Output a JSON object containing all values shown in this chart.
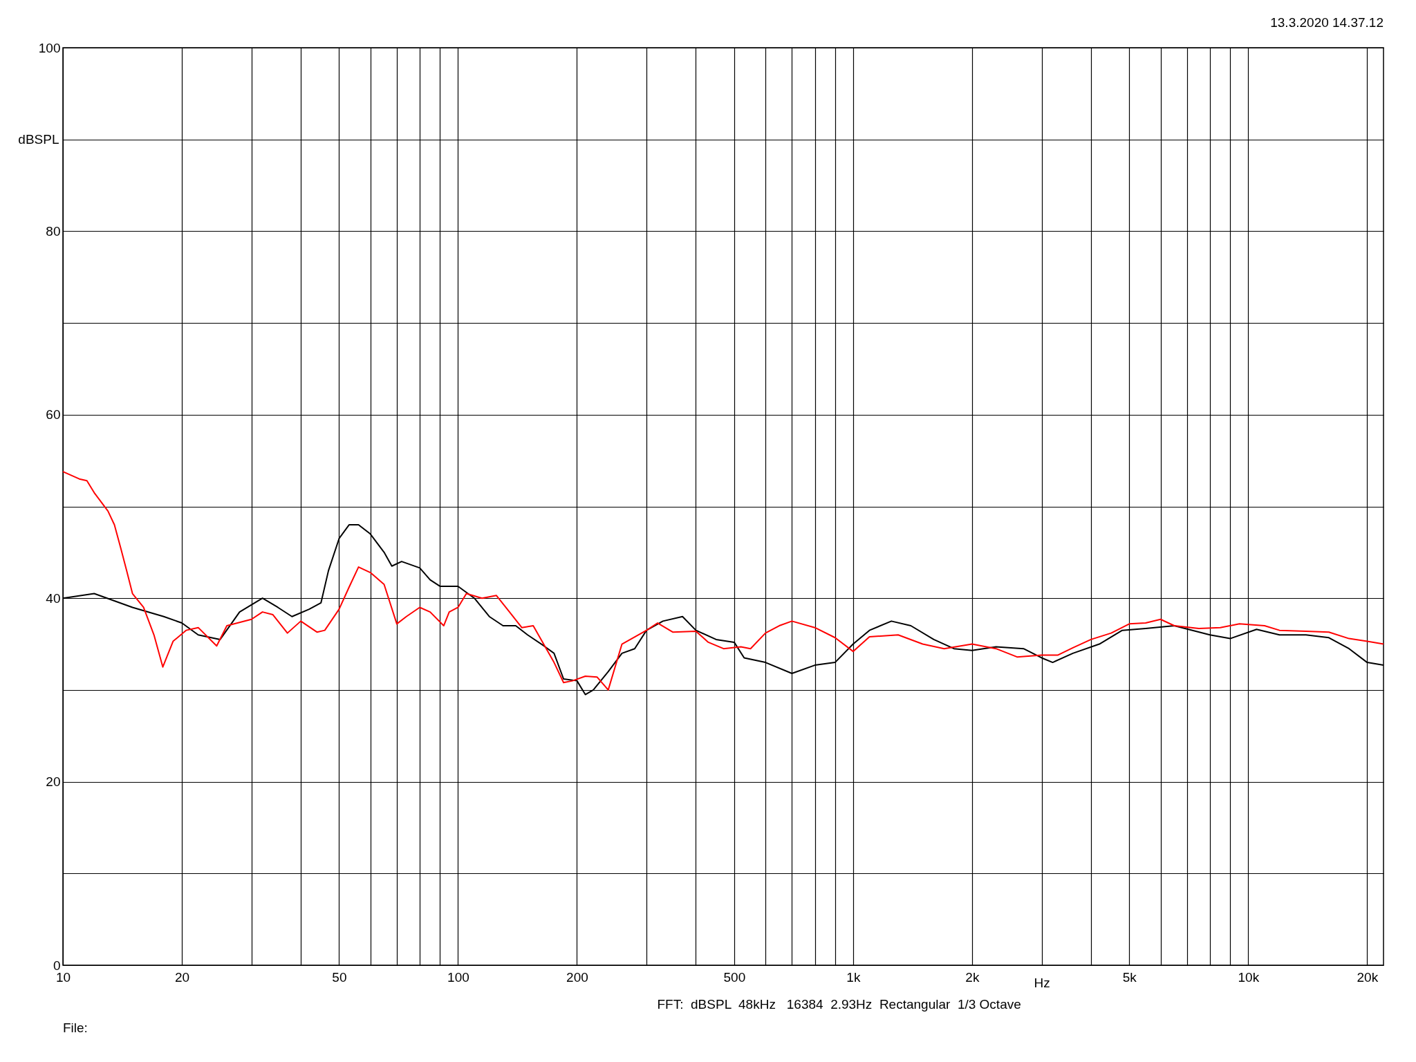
{
  "chart_data": {
    "type": "line",
    "xlabel": "Hz",
    "ylabel": "dBSPL",
    "log": "x",
    "grid": true,
    "legend": false,
    "marker": "none",
    "line_style": "solid",
    "annotations": [
      "13.3.2020 14.37.12",
      "FFT:  dBSPL  48kHz   16384  2.93Hz  Rectangular  1/3 Octave",
      "File:"
    ],
    "xlim": [
      10,
      22000
    ],
    "xticks": [
      {
        "value": 10,
        "label": "10"
      },
      {
        "value": 20,
        "label": "20"
      },
      {
        "value": 30,
        "label": null
      },
      {
        "value": 40,
        "label": null
      },
      {
        "value": 50,
        "label": "50"
      },
      {
        "value": 60,
        "label": null
      },
      {
        "value": 70,
        "label": null
      },
      {
        "value": 80,
        "label": null
      },
      {
        "value": 90,
        "label": null
      },
      {
        "value": 100,
        "label": "100"
      },
      {
        "value": 200,
        "label": "200"
      },
      {
        "value": 300,
        "label": null
      },
      {
        "value": 400,
        "label": null
      },
      {
        "value": 500,
        "label": "500"
      },
      {
        "value": 600,
        "label": null
      },
      {
        "value": 700,
        "label": null
      },
      {
        "value": 800,
        "label": null
      },
      {
        "value": 900,
        "label": null
      },
      {
        "value": 1000,
        "label": "1k"
      },
      {
        "value": 2000,
        "label": "2k"
      },
      {
        "value": 3000,
        "label": null
      },
      {
        "value": 4000,
        "label": null
      },
      {
        "value": 5000,
        "label": "5k"
      },
      {
        "value": 6000,
        "label": null
      },
      {
        "value": 7000,
        "label": null
      },
      {
        "value": 8000,
        "label": null
      },
      {
        "value": 9000,
        "label": null
      },
      {
        "value": 10000,
        "label": "10k"
      },
      {
        "value": 20000,
        "label": "20k"
      }
    ],
    "ylim": [
      0,
      100
    ],
    "yticks": [
      0,
      {
        "value": 10,
        "label": null
      },
      20,
      {
        "value": 30,
        "label": null
      },
      40,
      {
        "value": 50,
        "label": null
      },
      60,
      {
        "value": 70,
        "label": null
      },
      80,
      {
        "value": 90,
        "label": null
      },
      100
    ],
    "series": [
      {
        "color": "#000000",
        "x": [
          10,
          12,
          15,
          18,
          20,
          22,
          25,
          28,
          32,
          35,
          38,
          42,
          45,
          47,
          50,
          53,
          56,
          60,
          65,
          68,
          72,
          80,
          85,
          90,
          100,
          110,
          120,
          130,
          140,
          150,
          165,
          175,
          185,
          200,
          210,
          220,
          240,
          260,
          280,
          300,
          330,
          370,
          400,
          450,
          500,
          530,
          600,
          700,
          800,
          900,
          1000,
          1100,
          1250,
          1400,
          1600,
          1800,
          2000,
          2300,
          2700,
          3000,
          3200,
          3600,
          4200,
          4800,
          5500,
          6500,
          8000,
          9000,
          10500,
          12000,
          14000,
          16000,
          18000,
          20000,
          22000
        ],
        "values": [
          40,
          40.5,
          39,
          38,
          37.3,
          36,
          35.5,
          38.5,
          40,
          39,
          38,
          38.8,
          39.5,
          43,
          46.5,
          48,
          48,
          47,
          45,
          43.5,
          44,
          43.3,
          42,
          41.3,
          41.3,
          40,
          38,
          37,
          37,
          36,
          34.8,
          34,
          31.2,
          31,
          29.5,
          30,
          32,
          34,
          34.5,
          36.5,
          37.5,
          38,
          36.5,
          35.5,
          35.2,
          33.5,
          33,
          31.8,
          32.7,
          33,
          35,
          36.5,
          37.5,
          37,
          35.5,
          34.5,
          34.3,
          34.7,
          34.5,
          33.5,
          33,
          34,
          35,
          36.5,
          36.7,
          37,
          36,
          35.6,
          36.6,
          36,
          36,
          35.7,
          34.5,
          33,
          32.7
        ]
      },
      {
        "color": "#ff0000",
        "x": [
          10,
          11,
          11.5,
          12,
          13,
          13.5,
          14,
          14.5,
          15,
          16,
          17,
          17.9,
          19,
          20.5,
          22,
          24.5,
          26,
          30,
          32,
          34,
          37,
          40,
          44,
          46,
          50,
          53,
          56,
          60,
          65,
          70,
          74,
          80,
          85,
          92,
          95,
          100,
          105,
          115,
          125,
          135,
          145,
          155,
          175,
          185,
          195,
          210,
          225,
          240,
          260,
          300,
          320,
          350,
          400,
          430,
          470,
          520,
          550,
          600,
          650,
          700,
          800,
          900,
          1000,
          1100,
          1300,
          1500,
          1700,
          2000,
          2300,
          2600,
          3000,
          3300,
          3600,
          4000,
          4500,
          5000,
          5500,
          6000,
          6500,
          7500,
          8500,
          9500,
          11000,
          12000,
          14000,
          16000,
          18000,
          20000,
          22000
        ],
        "values": [
          53.8,
          53,
          52.8,
          51.5,
          49.5,
          48,
          45.5,
          43,
          40.5,
          39,
          36,
          32.5,
          35.3,
          36.5,
          36.8,
          34.8,
          37,
          37.7,
          38.5,
          38.2,
          36.2,
          37.5,
          36.3,
          36.5,
          38.8,
          41.2,
          43.4,
          42.8,
          41.5,
          37.2,
          38,
          39,
          38.5,
          37,
          38.5,
          39,
          40.5,
          40,
          40.3,
          38.5,
          36.8,
          37,
          33,
          30.8,
          31,
          31.5,
          31.4,
          30,
          35,
          36.5,
          37.3,
          36.3,
          36.4,
          35.2,
          34.5,
          34.7,
          34.5,
          36.2,
          37,
          37.5,
          36.8,
          35.7,
          34.2,
          35.8,
          36,
          35,
          34.5,
          35,
          34.5,
          33.6,
          33.8,
          33.8,
          34.6,
          35.5,
          36.2,
          37.2,
          37.3,
          37.7,
          37,
          36.7,
          36.8,
          37.2,
          37,
          36.5,
          36.4,
          36.3,
          35.6,
          35.3,
          35
        ]
      }
    ]
  }
}
